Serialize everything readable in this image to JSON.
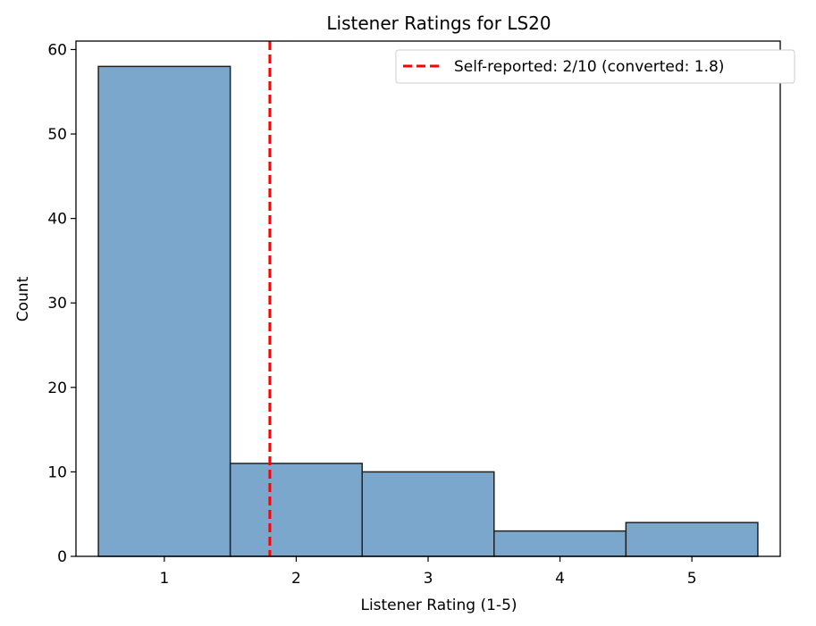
{
  "chart_data": {
    "type": "bar",
    "title": "Listener Ratings for LS20",
    "xlabel": "Listener Rating (1-5)",
    "ylabel": "Count",
    "categories": [
      "1",
      "2",
      "3",
      "4",
      "5"
    ],
    "x_values": [
      1,
      2,
      3,
      4,
      5
    ],
    "values": [
      58,
      11,
      10,
      3,
      4
    ],
    "xlim": [
      0.33,
      5.67
    ],
    "ylim": [
      0,
      61
    ],
    "x_ticks": [
      1,
      2,
      3,
      4,
      5
    ],
    "y_ticks": [
      0,
      10,
      20,
      30,
      40,
      50,
      60
    ],
    "grid": false,
    "bar_color": "#7ba7cc",
    "bar_edge_color": "#222222",
    "reference_line": {
      "x": 1.8,
      "label": "Self-reported: 2/10 (converted: 1.8)",
      "color": "#ff0000",
      "style": "dashed"
    },
    "legend": {
      "position": "top-right",
      "entries": [
        "Self-reported: 2/10 (converted: 1.8)"
      ]
    }
  }
}
